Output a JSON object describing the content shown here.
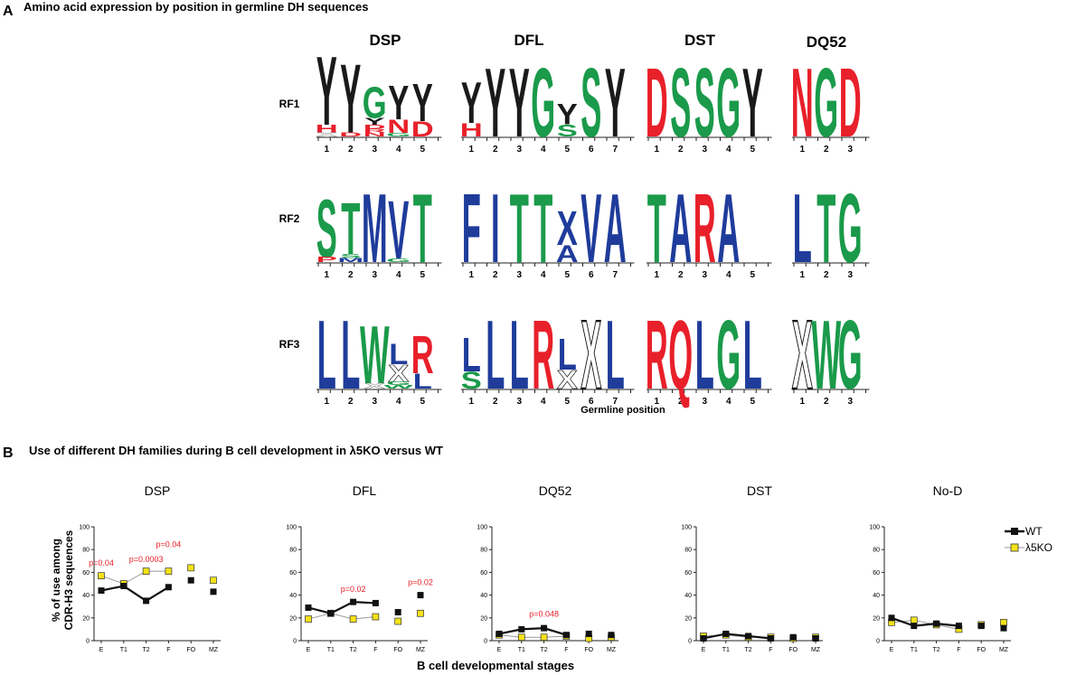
{
  "panel_a": {
    "letter": "A",
    "title": "Amino acid expression by position in germline DH sequences",
    "xlabel": "Germline position",
    "families": [
      "DSP",
      "DFL",
      "DST",
      "DQ52"
    ],
    "reading_frames": [
      "RF1",
      "RF2",
      "RF3"
    ],
    "colors": {
      "K": "#1a1a1a",
      "R": "#e8202a",
      "G": "#1a9a4a",
      "B": "#1f3c9b",
      "W": "#ffffff"
    },
    "logos": [
      [
        [
          [
            [
              "Y",
              "K",
              1.0
            ]
          ],
          [
            [
              "H",
              "R",
              0.22
            ],
            [
              "X",
              "W",
              0.12
            ]
          ]
        ],
        [
          [
            [
              "Y",
              "K",
              1.0
            ]
          ],
          [
            [
              "D",
              "R",
              0.12
            ]
          ]
        ],
        [
          [
            [
              "G",
              "G",
              0.45
            ],
            [
              "Y",
              "K",
              0.1
            ]
          ],
          [
            [
              "D",
              "R",
              0.12
            ],
            [
              "R",
              "R",
              0.1
            ],
            [
              "N",
              "R",
              0.12
            ]
          ]
        ],
        [
          [
            [
              "Y",
              "K",
              0.5
            ]
          ],
          [
            [
              "N",
              "R",
              0.4
            ],
            [
              "G",
              "G",
              0.1
            ]
          ]
        ],
        [
          [
            [
              "Y",
              "K",
              0.55
            ]
          ],
          [
            [
              "D",
              "R",
              0.45
            ]
          ]
        ]
      ],
      [
        [
          [
            [
              "Y",
              "K",
              0.6
            ]
          ],
          [
            [
              "H",
              "R",
              0.4
            ]
          ]
        ],
        [
          [
            [
              "Y",
              "K",
              1.0
            ]
          ],
          []
        ],
        [
          [
            [
              "Y",
              "K",
              1.0
            ]
          ],
          []
        ],
        [
          [
            [
              "G",
              "G",
              1.0
            ]
          ],
          []
        ],
        [
          [
            [
              "Y",
              "K",
              0.3
            ]
          ],
          [
            [
              "S",
              "G",
              0.35
            ]
          ]
        ],
        [
          [
            [
              "S",
              "G",
              1.0
            ]
          ],
          []
        ],
        [
          [
            [
              "Y",
              "K",
              1.0
            ]
          ],
          []
        ]
      ],
      [
        [
          [
            [
              "D",
              "R",
              1.0
            ]
          ],
          []
        ],
        [
          [
            [
              "S",
              "G",
              1.0
            ]
          ],
          []
        ],
        [
          [
            [
              "S",
              "G",
              1.0
            ]
          ],
          []
        ],
        [
          [
            [
              "G",
              "G",
              1.0
            ]
          ],
          []
        ],
        [
          [
            [
              "Y",
              "K",
              1.0
            ]
          ],
          []
        ]
      ],
      [
        [
          [
            [
              "N",
              "R",
              1.0
            ]
          ],
          []
        ],
        [
          [
            [
              "G",
              "G",
              1.0
            ]
          ],
          []
        ],
        [
          [
            [
              "D",
              "R",
              1.0
            ]
          ],
          []
        ]
      ],
      [
        [
          [
            [
              "S",
              "G",
              0.85
            ]
          ],
          [
            [
              "P",
              "R",
              0.15
            ]
          ]
        ],
        [
          [
            [
              "T",
              "G",
              0.75
            ]
          ],
          [
            [
              "S",
              "G",
              0.12
            ],
            [
              "M",
              "B",
              0.12
            ]
          ]
        ],
        [
          [
            [
              "M",
              "B",
              1.0
            ]
          ],
          []
        ],
        [
          [
            [
              "V",
              "B",
              0.85
            ]
          ],
          [
            [
              "G",
              "G",
              0.1
            ]
          ]
        ],
        [
          [
            [
              "T",
              "G",
              1.0
            ]
          ],
          []
        ]
      ],
      [
        [
          [
            [
              "F",
              "B",
              1.0
            ]
          ],
          []
        ],
        [
          [
            [
              "I",
              "B",
              1.0
            ]
          ],
          []
        ],
        [
          [
            [
              "T",
              "G",
              1.0
            ]
          ],
          []
        ],
        [
          [
            [
              "T",
              "G",
              1.0
            ]
          ],
          []
        ],
        [
          [
            [
              "X",
              "B",
              0.5
            ]
          ],
          [
            [
              "A",
              "B",
              0.5
            ]
          ]
        ],
        [
          [
            [
              "V",
              "B",
              1.0
            ]
          ],
          []
        ],
        [
          [
            [
              "A",
              "B",
              1.0
            ]
          ],
          []
        ]
      ],
      [
        [
          [
            [
              "T",
              "G",
              1.0
            ]
          ],
          []
        ],
        [
          [
            [
              "A",
              "B",
              1.0
            ]
          ],
          []
        ],
        [
          [
            [
              "R",
              "R",
              1.0
            ]
          ],
          []
        ],
        [
          [
            [
              "A",
              "B",
              1.0
            ]
          ],
          []
        ],
        [
          [],
          []
        ]
      ],
      [
        [
          [
            [
              "L",
              "B",
              1.0
            ]
          ],
          []
        ],
        [
          [
            [
              "T",
              "G",
              1.0
            ]
          ],
          []
        ],
        [
          [
            [
              "G",
              "G",
              1.0
            ]
          ],
          []
        ]
      ],
      [
        [
          [
            [
              "L",
              "B",
              1.0
            ]
          ],
          []
        ],
        [
          [
            [
              "L",
              "B",
              1.0
            ]
          ],
          []
        ],
        [
          [
            [
              "W",
              "G",
              0.85
            ]
          ],
          [
            [
              "X",
              "W",
              0.15
            ]
          ]
        ],
        [
          [
            [
              "L",
              "B",
              0.3
            ],
            [
              "X",
              "W",
              0.25
            ]
          ],
          [
            [
              "G",
              "G",
              0.1
            ],
            [
              "W",
              "G",
              0.1
            ]
          ]
        ],
        [
          [
            [
              "R",
              "R",
              0.55
            ]
          ],
          [
            [
              "L",
              "B",
              0.45
            ]
          ]
        ]
      ],
      [
        [
          [
            [
              "L",
              "B",
              0.5
            ]
          ],
          [
            [
              "S",
              "G",
              0.5
            ]
          ]
        ],
        [
          [
            [
              "L",
              "B",
              1.0
            ]
          ],
          []
        ],
        [
          [
            [
              "L",
              "B",
              1.0
            ]
          ],
          []
        ],
        [
          [
            [
              "R",
              "R",
              1.0
            ]
          ],
          []
        ],
        [
          [
            [
              "L",
              "B",
              0.45
            ]
          ],
          [
            [
              "X",
              "W",
              0.55
            ]
          ]
        ],
        [
          [
            [
              "X",
              "W",
              1.0
            ]
          ],
          []
        ],
        [
          [
            [
              "L",
              "B",
              1.0
            ]
          ],
          []
        ]
      ],
      [
        [
          [
            [
              "R",
              "R",
              1.0
            ]
          ],
          []
        ],
        [
          [
            [
              "Q",
              "R",
              1.0
            ]
          ],
          []
        ],
        [
          [
            [
              "L",
              "B",
              1.0
            ]
          ],
          []
        ],
        [
          [
            [
              "G",
              "G",
              1.0
            ]
          ],
          []
        ],
        [
          [
            [
              "L",
              "B",
              1.0
            ]
          ],
          []
        ]
      ],
      [
        [
          [
            [
              "X",
              "W",
              1.0
            ]
          ],
          []
        ],
        [
          [
            [
              "W",
              "G",
              1.0
            ]
          ],
          []
        ],
        [
          [
            [
              "G",
              "G",
              1.0
            ]
          ],
          []
        ]
      ]
    ]
  },
  "panel_b": {
    "letter": "B",
    "title": "Use of different DH families during B cell development in λ5KO versus WT",
    "xlabel": "B cell  developmental stages",
    "ylabel_line1": "% of use among",
    "ylabel_line2": "CDR-H3 sequences",
    "legend": [
      {
        "label": "WT",
        "color": "#111111"
      },
      {
        "label": "λ5KO",
        "color": "#f4e21a"
      }
    ],
    "pvalue_color": "#e8202a"
  },
  "chart_data": [
    {
      "type": "line",
      "title": "DSP",
      "categories": [
        "E",
        "T1",
        "T2",
        "F",
        "FO",
        "MZ"
      ],
      "ylim": [
        0,
        100
      ],
      "yticks": [
        0,
        20,
        40,
        60,
        80,
        100
      ],
      "series": [
        {
          "name": "WT",
          "values": [
            44,
            48,
            35,
            47,
            53,
            43
          ]
        },
        {
          "name": "λ5KO",
          "values": [
            57,
            50,
            61,
            61,
            64,
            53
          ]
        }
      ],
      "annotations": [
        {
          "text": "p=0.04",
          "x": "E",
          "y": 66
        },
        {
          "text": "p=0.0003",
          "x": "T2",
          "y": 69
        },
        {
          "text": "p=0.04",
          "x": "F",
          "y": 82
        }
      ]
    },
    {
      "type": "line",
      "title": "DFL",
      "categories": [
        "E",
        "T1",
        "T2",
        "F",
        "FO",
        "MZ"
      ],
      "ylim": [
        0,
        100
      ],
      "yticks": [
        0,
        20,
        40,
        60,
        80,
        100
      ],
      "series": [
        {
          "name": "WT",
          "values": [
            29,
            24,
            34,
            33,
            25,
            40
          ]
        },
        {
          "name": "λ5KO",
          "values": [
            19,
            24,
            19,
            21,
            17,
            24
          ]
        }
      ],
      "annotations": [
        {
          "text": "p=0.02",
          "x": "T2",
          "y": 43
        },
        {
          "text": "p=0.02",
          "x": "MZ",
          "y": 49
        }
      ]
    },
    {
      "type": "line",
      "title": "DQ52",
      "categories": [
        "E",
        "T1",
        "T2",
        "F",
        "FO",
        "MZ"
      ],
      "ylim": [
        0,
        100
      ],
      "yticks": [
        0,
        20,
        40,
        60,
        80,
        100
      ],
      "series": [
        {
          "name": "WT",
          "values": [
            6,
            10,
            11,
            5,
            6,
            5
          ]
        },
        {
          "name": "λ5KO",
          "values": [
            5,
            3,
            3,
            4,
            2,
            3
          ]
        }
      ],
      "annotations": [
        {
          "text": "p=0.048",
          "x": "T2",
          "y": 21
        }
      ]
    },
    {
      "type": "line",
      "title": "DST",
      "categories": [
        "E",
        "T1",
        "T2",
        "F",
        "FO",
        "MZ"
      ],
      "ylim": [
        0,
        100
      ],
      "yticks": [
        0,
        20,
        40,
        60,
        80,
        100
      ],
      "series": [
        {
          "name": "WT",
          "values": [
            2,
            6,
            4,
            2,
            3,
            2
          ]
        },
        {
          "name": "λ5KO",
          "values": [
            4,
            5,
            3,
            3,
            2,
            3
          ]
        }
      ],
      "annotations": []
    },
    {
      "type": "line",
      "title": "No-D",
      "categories": [
        "E",
        "T1",
        "T2",
        "F",
        "FO",
        "MZ"
      ],
      "ylim": [
        0,
        100
      ],
      "yticks": [
        0,
        20,
        40,
        60,
        80,
        100
      ],
      "series": [
        {
          "name": "WT",
          "values": [
            20,
            13,
            15,
            13,
            13,
            11
          ]
        },
        {
          "name": "λ5KO",
          "values": [
            16,
            18,
            14,
            10,
            14,
            16
          ]
        }
      ],
      "annotations": []
    }
  ]
}
